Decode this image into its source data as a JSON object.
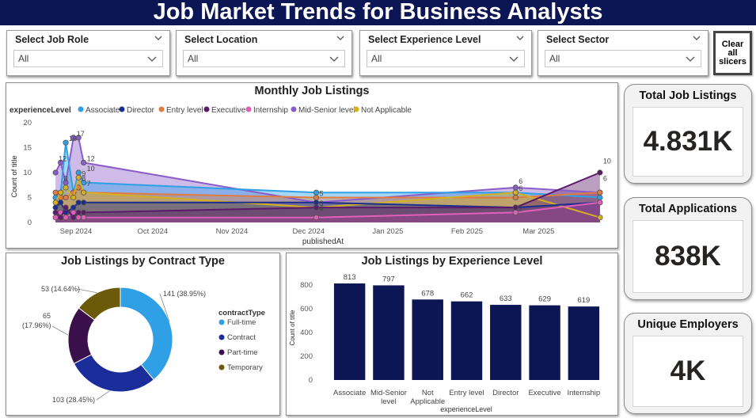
{
  "header": {
    "title": "Job Market Trends for Business Analysts"
  },
  "filters": [
    {
      "label": "Select Job Role",
      "value": "All"
    },
    {
      "label": "Select Location",
      "value": "All"
    },
    {
      "label": "Select Experience Level",
      "value": "All"
    },
    {
      "label": "Select Sector",
      "value": "All"
    }
  ],
  "clear_button": {
    "lines": [
      "Clear",
      "all",
      "slicers"
    ]
  },
  "cards": [
    {
      "title": "Total Job Listings",
      "value": "4.831K"
    },
    {
      "title": "Total Applications",
      "value": "838K"
    },
    {
      "title": "Unique Employers",
      "value": "4K"
    }
  ],
  "colors": {
    "header_bg": "#0d1654",
    "bar": "#0d1654",
    "associate": "#2f9fe6",
    "director": "#1b2d8f",
    "entry_level": "#e07b42",
    "executive": "#5b1a6a",
    "internship": "#e05fb8",
    "mid_senior": "#8a5cc9",
    "not_applicable": "#d4b021",
    "full_time": "#2f9fe6",
    "contract": "#1b2d9a",
    "part_time": "#3b0f4a",
    "temporary": "#6b5a0a"
  },
  "chart_data": [
    {
      "type": "area",
      "title": "Monthly Job Listings",
      "xlabel": "publishedAt",
      "ylabel": "Count of title",
      "legend_title": "experienceLevel",
      "ylim": [
        0,
        20
      ],
      "y_ticks": [
        "0",
        "5",
        "10",
        "15",
        "20"
      ],
      "x_ticks": [
        "Sep 2024",
        "Oct 2024",
        "Nov 2024",
        "Dec 2024",
        "Jan 2025",
        "Feb 2025",
        "Mar 2025"
      ],
      "series": [
        {
          "name": "Associate",
          "points": [
            [
              "2024-08-24",
              5
            ],
            [
              "2024-08-26",
              6
            ],
            [
              "2024-08-28",
              16
            ],
            [
              "2024-08-31",
              6
            ],
            [
              "2024-09-02",
              10
            ],
            [
              "2024-09-04",
              8
            ],
            [
              "2024-12-04",
              6
            ],
            [
              "2025-02-20",
              6
            ],
            [
              "2025-03-25",
              5
            ]
          ]
        },
        {
          "name": "Director",
          "points": [
            [
              "2024-08-24",
              3
            ],
            [
              "2024-08-26",
              4
            ],
            [
              "2024-08-28",
              2
            ],
            [
              "2024-08-31",
              3
            ],
            [
              "2024-09-02",
              4
            ],
            [
              "2024-09-04",
              4
            ],
            [
              "2024-12-04",
              4
            ],
            [
              "2025-02-20",
              3
            ],
            [
              "2025-03-25",
              4
            ]
          ]
        },
        {
          "name": "Entry level",
          "points": [
            [
              "2024-08-24",
              6
            ],
            [
              "2024-08-26",
              5
            ],
            [
              "2024-08-28",
              5
            ],
            [
              "2024-08-31",
              6
            ],
            [
              "2024-09-02",
              7
            ],
            [
              "2024-09-04",
              6
            ],
            [
              "2024-12-04",
              5
            ],
            [
              "2025-02-20",
              5
            ],
            [
              "2025-03-25",
              6
            ]
          ]
        },
        {
          "name": "Executive",
          "points": [
            [
              "2024-08-24",
              2
            ],
            [
              "2024-08-26",
              1
            ],
            [
              "2024-08-28",
              3
            ],
            [
              "2024-08-31",
              1
            ],
            [
              "2024-09-02",
              2
            ],
            [
              "2024-09-04",
              2
            ],
            [
              "2024-12-04",
              3
            ],
            [
              "2025-02-20",
              3
            ],
            [
              "2025-03-25",
              10
            ]
          ]
        },
        {
          "name": "Internship",
          "points": [
            [
              "2024-08-24",
              1
            ],
            [
              "2024-08-26",
              2
            ],
            [
              "2024-08-28",
              1
            ],
            [
              "2024-08-31",
              2
            ],
            [
              "2024-09-02",
              1
            ],
            [
              "2024-09-04",
              1
            ],
            [
              "2024-12-04",
              1
            ],
            [
              "2025-02-20",
              2
            ],
            [
              "2025-03-25",
              4
            ]
          ]
        },
        {
          "name": "Mid-Senior level",
          "points": [
            [
              "2024-08-24",
              10
            ],
            [
              "2024-08-26",
              12
            ],
            [
              "2024-08-28",
              8
            ],
            [
              "2024-08-31",
              17
            ],
            [
              "2024-09-02",
              17
            ],
            [
              "2024-09-04",
              12
            ],
            [
              "2024-12-04",
              4
            ],
            [
              "2025-02-20",
              7
            ],
            [
              "2025-03-25",
              6
            ]
          ]
        },
        {
          "name": "Not Applicable",
          "points": [
            [
              "2024-08-24",
              4
            ],
            [
              "2024-08-26",
              6
            ],
            [
              "2024-08-28",
              7
            ],
            [
              "2024-08-31",
              5
            ],
            [
              "2024-09-02",
              9
            ],
            [
              "2024-09-04",
              6
            ],
            [
              "2024-12-04",
              3
            ],
            [
              "2025-02-20",
              6
            ],
            [
              "2025-03-25",
              1
            ]
          ]
        }
      ],
      "data_labels": [
        {
          "x": "2024-08-24",
          "y": 12,
          "text": "12"
        },
        {
          "x": "2024-08-28",
          "y": 16,
          "text": "16"
        },
        {
          "x": "2024-08-31",
          "y": 17,
          "text": "17"
        },
        {
          "x": "2024-09-04",
          "y": 12,
          "text": "12"
        },
        {
          "x": "2024-09-04",
          "y": 10,
          "text": "10"
        },
        {
          "x": "2024-09-02",
          "y": 8,
          "text": "8"
        },
        {
          "x": "2024-09-04",
          "y": 7,
          "text": "7"
        },
        {
          "x": "2024-09-02",
          "y": 9,
          "text": "9"
        },
        {
          "x": "2024-08-26",
          "y": 8,
          "text": "8"
        },
        {
          "x": "2024-12-04",
          "y": 5,
          "text": "5"
        },
        {
          "x": "2024-12-04",
          "y": 3,
          "text": "3"
        },
        {
          "x": "2024-12-04",
          "y": 2,
          "text": "4"
        },
        {
          "x": "2025-02-20",
          "y": 7.5,
          "text": "6"
        },
        {
          "x": "2025-02-20",
          "y": 6,
          "text": "6"
        },
        {
          "x": "2025-02-20",
          "y": 2,
          "text": "2"
        },
        {
          "x": "2025-03-25",
          "y": 11.5,
          "text": "10"
        },
        {
          "x": "2025-03-25",
          "y": 8,
          "text": "6"
        }
      ]
    },
    {
      "type": "pie",
      "title": "Job Listings by Contract Type",
      "legend_title": "contractType",
      "slices": [
        {
          "name": "Full-time",
          "value": 141,
          "label": "141 (38.95%)"
        },
        {
          "name": "Contract",
          "value": 103,
          "label": "103 (28.45%)"
        },
        {
          "name": "Part-time",
          "value": 65,
          "label": "65 (17.96%)"
        },
        {
          "name": "Temporary",
          "value": 53,
          "label": "53 (14.64%)"
        }
      ]
    },
    {
      "type": "bar",
      "title": "Job Listings by Experience Level",
      "xlabel": "experienceLevel",
      "ylabel": "Count of title",
      "ylim": [
        0,
        900
      ],
      "y_ticks": [
        "0",
        "200",
        "400",
        "600",
        "800"
      ],
      "categories": [
        "Associate",
        "Mid-Senior level",
        "Not Applicable",
        "Entry level",
        "Director",
        "Executive",
        "Internship"
      ],
      "category_lines": [
        [
          "Associate"
        ],
        [
          "Mid-Senior",
          "level"
        ],
        [
          "Not",
          "Applicable"
        ],
        [
          "Entry level"
        ],
        [
          "Director"
        ],
        [
          "Executive"
        ],
        [
          "Internship"
        ]
      ],
      "values": [
        813,
        797,
        678,
        662,
        633,
        629,
        619
      ]
    }
  ]
}
